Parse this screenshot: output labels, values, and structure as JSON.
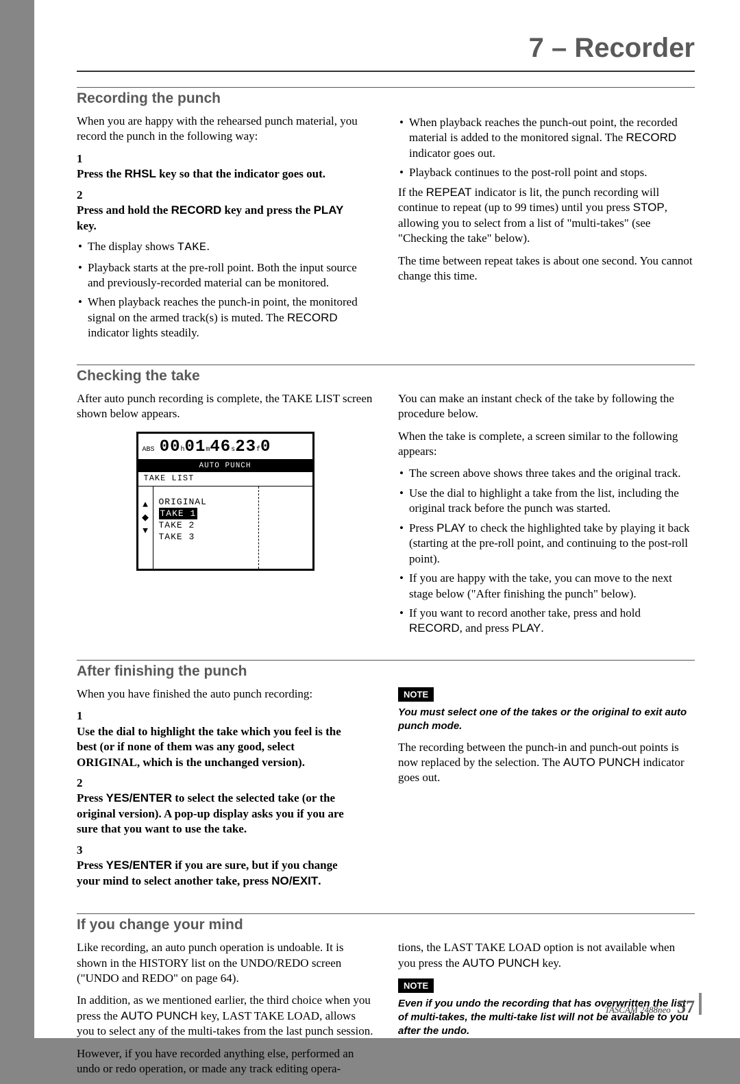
{
  "chapter": "7 – Recorder",
  "footer": {
    "model": "TASCAM  2488neo",
    "page": "57"
  },
  "sec1": {
    "title": "Recording the punch",
    "L": {
      "intro": "When you are happy with the rehearsed punch material, you record the punch in the following way:",
      "step1_a": "Press the ",
      "step1_key": "RHSL",
      "step1_b": " key so that the indicator goes out.",
      "step2_a": "Press and hold the ",
      "step2_key": "RECORD",
      "step2_b": " key and press the ",
      "step2_key2": "PLAY",
      "step2_c": " key.",
      "b1_a": "The display shows ",
      "b1_mono": "TAKE",
      "b1_b": ".",
      "b2": "Playback starts at the pre-roll point. Both the input source and previously-recorded material can be monitored.",
      "b3_a": "When playback reaches the punch-in point, the monitored signal on the armed track(s) is muted. The ",
      "b3_key": "RECORD",
      "b3_b": " indicator lights steadily."
    },
    "R": {
      "b1_a": "When playback reaches the punch-out point, the recorded material is added to the monitored signal. The ",
      "b1_key": "RECORD",
      "b1_b": " indicator goes out.",
      "b2": "Playback continues to the post-roll point and stops.",
      "p1_a": "If the ",
      "p1_key": "REPEAT",
      "p1_b": " indicator is lit, the punch recording will continue to repeat (up to 99 times) until you press ",
      "p1_key2": "STOP",
      "p1_c": ", allowing you to select from a list of \"multi-takes\" (see \"Checking the take\" below).",
      "p2": "The time between repeat takes is about one second. You cannot change this time."
    }
  },
  "sec2": {
    "title": "Checking the take",
    "L": {
      "intro": "After auto punch recording is complete, the TAKE LIST screen shown below appears."
    },
    "lcd": {
      "abs": "ABS",
      "hh": "00",
      "h": "h",
      "mm": "01",
      "m": "m",
      "ss": "46",
      "s": "s",
      "ff": "23",
      "f": "f",
      "fr": "0",
      "bar": "AUTO PUNCH",
      "sub": "TAKE LIST",
      "items": [
        "ORIGINAL",
        "TAKE 1",
        "TAKE 2",
        "TAKE 3"
      ],
      "selected_index": 1
    },
    "R": {
      "p1": "You can make an instant check of the take by following the procedure below.",
      "p2": "When the take is complete, a screen similar to the following appears:",
      "b1": "The screen above shows three takes and the original track.",
      "b2": "Use the dial to highlight a take from the list, including the original track before the punch was started.",
      "b3_a": "Press ",
      "b3_key": "PLAY",
      "b3_b": " to check the highlighted take by playing it back (starting at the pre-roll point, and continuing to the post-roll point).",
      "b4": "If you are happy with the take, you can move to the next stage below (\"After finishing the punch\" below).",
      "b5_a": "If you want to record another take, press and hold ",
      "b5_key": "RECORD",
      "b5_b": ", and press ",
      "b5_key2": "PLAY",
      "b5_c": "."
    }
  },
  "sec3": {
    "title": "After finishing the punch",
    "L": {
      "intro": "When you have finished the auto punch recording:",
      "s1": "Use the dial to highlight the take which you feel is the best (or if none of them was any good, select ORIGINAL, which is the unchanged version).",
      "s2_a": "Press ",
      "s2_key": "YES/ENTER",
      "s2_b": " to select the selected take (or the original version). A pop-up display asks you if you are sure that you want to use the take.",
      "s3_a": "Press ",
      "s3_key": "YES/ENTER",
      "s3_b": " if you are sure, but if you change your mind to select another take, press ",
      "s3_key2": "NO/EXIT",
      "s3_c": "."
    },
    "R": {
      "note_label": "NOTE",
      "note": "You must select one of the takes or the original to exit auto punch mode.",
      "p_a": "The recording between the punch-in and punch-out points is now replaced by the selection. The ",
      "p_key": "AUTO PUNCH",
      "p_b": " indicator goes out."
    }
  },
  "sec4": {
    "title": "If you change your mind",
    "L": {
      "p1": "Like recording, an auto punch operation is undoable. It is shown in the HISTORY list on the UNDO/REDO screen (\"UNDO and REDO\" on page 64).",
      "p2_a": "In addition, as we mentioned earlier, the third choice when you press the ",
      "p2_key": "AUTO PUNCH",
      "p2_b": " key, LAST TAKE LOAD, allows you to select any of the multi-takes from the last punch session.",
      "p3": "However, if you have recorded anything else, performed an undo or redo operation, or made any track editing opera-"
    },
    "R": {
      "p1_a": "tions, the LAST TAKE LOAD option is not available when you press the ",
      "p1_key": "AUTO PUNCH",
      "p1_b": " key.",
      "note_label": "NOTE",
      "note": "Even if you undo the recording that has overwritten the list of multi-takes, the multi-take list will not be available to you after the undo."
    }
  }
}
